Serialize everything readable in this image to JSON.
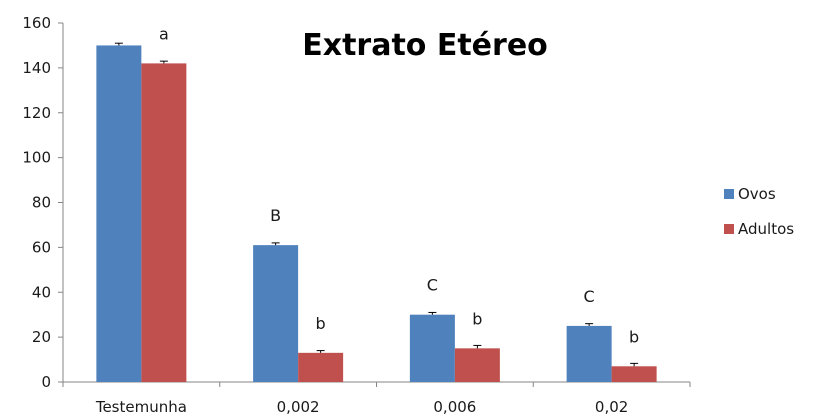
{
  "chart_data": {
    "type": "bar",
    "title": "Extrato Etéreo",
    "xlabel": "",
    "ylabel": "",
    "categories": [
      "Testemunha",
      "0,002",
      "0,006",
      "0,02"
    ],
    "series": [
      {
        "name": "Ovos",
        "color": "#4f81bd",
        "values": [
          150,
          61,
          30,
          25
        ],
        "errors": [
          1,
          1,
          1,
          1
        ],
        "annotations": [
          "",
          "B",
          "C",
          "C"
        ]
      },
      {
        "name": "Adultos",
        "color": "#c0504d",
        "values": [
          142,
          13,
          15,
          7
        ],
        "errors": [
          1,
          1,
          1.3,
          1.3
        ],
        "annotations": [
          "a",
          "b",
          "b",
          "b"
        ]
      }
    ],
    "ylim": [
      0,
      160
    ],
    "yticks": [
      0,
      20,
      40,
      60,
      80,
      100,
      120,
      140,
      160
    ],
    "grid": false,
    "legend": "right"
  }
}
